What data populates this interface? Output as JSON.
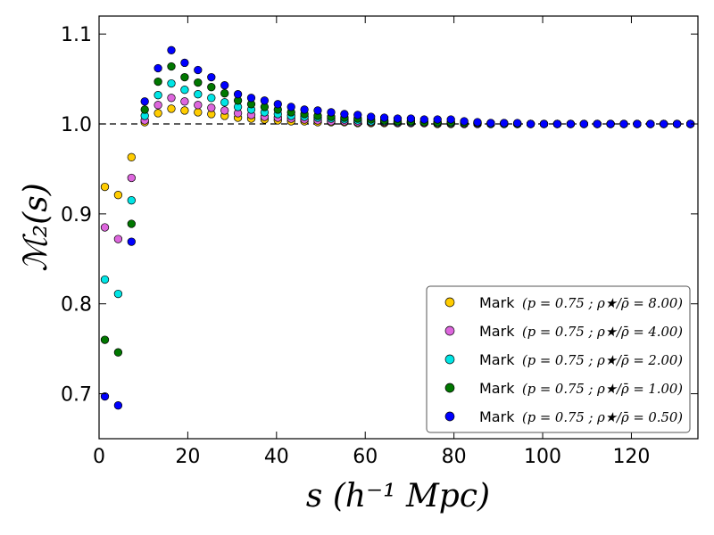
{
  "chart_data": {
    "type": "scatter",
    "title": "",
    "xlabel": "s (h⁻¹ Mpc)",
    "ylabel": "ℳ₂(s)",
    "xlim": [
      0,
      135
    ],
    "ylim": [
      0.65,
      1.12
    ],
    "xticks": [
      0,
      20,
      40,
      60,
      80,
      100,
      120
    ],
    "xtick_labels": [
      "0",
      "20",
      "40",
      "60",
      "80",
      "100",
      "120"
    ],
    "yticks": [
      0.7,
      0.8,
      0.9,
      1.0,
      1.1
    ],
    "ytick_labels": [
      "0.7",
      "0.8",
      "0.9",
      "1.0",
      "1.1"
    ],
    "reference_line": {
      "y": 1.0,
      "style": "dashed"
    },
    "grid": false,
    "legend_position": "lower-right",
    "x": [
      1.3,
      4.3,
      7.3,
      10.3,
      13.3,
      16.3,
      19.3,
      22.3,
      25.3,
      28.3,
      31.3,
      34.3,
      37.3,
      40.3,
      43.3,
      46.3,
      49.3,
      52.3,
      55.3,
      58.3,
      61.3,
      64.3,
      67.3,
      70.3,
      73.3,
      76.3,
      79.3,
      82.3,
      85.3,
      88.3,
      91.3,
      94.3,
      97.3,
      100.3,
      103.3,
      106.3,
      109.3,
      112.3,
      115.3,
      118.3,
      121.3,
      124.3,
      127.3,
      130.3,
      133.3
    ],
    "series": [
      {
        "name": "Mark",
        "label_math": "(p = 0.75 ; ρ★/ρ̄ = 8.00)",
        "color": "#ffcc00",
        "values": [
          0.93,
          0.921,
          0.963,
          1.002,
          1.012,
          1.017,
          1.015,
          1.013,
          1.011,
          1.009,
          1.007,
          1.006,
          1.005,
          1.004,
          1.003,
          1.003,
          1.002,
          1.002,
          1.002,
          1.001,
          1.001,
          1.001,
          1.001,
          1.001,
          1.001,
          1.0,
          1.0,
          1.0,
          1.0,
          1.0,
          1.0,
          1.0,
          1.0,
          1.0,
          1.0,
          1.0,
          1.0,
          1.0,
          1.0,
          1.0,
          1.0,
          1.0,
          1.0,
          1.0,
          1.0
        ]
      },
      {
        "name": "Mark",
        "label_math": "(p = 0.75 ; ρ★/ρ̄ = 4.00)",
        "color": "#dd66dd",
        "values": [
          0.885,
          0.872,
          0.94,
          1.004,
          1.021,
          1.029,
          1.025,
          1.021,
          1.018,
          1.015,
          1.012,
          1.01,
          1.008,
          1.007,
          1.006,
          1.005,
          1.004,
          1.003,
          1.003,
          1.002,
          1.002,
          1.002,
          1.001,
          1.001,
          1.001,
          1.001,
          1.001,
          1.0,
          1.0,
          1.0,
          1.0,
          1.0,
          1.0,
          1.0,
          1.0,
          1.0,
          1.0,
          1.0,
          1.0,
          1.0,
          1.0,
          1.0,
          1.0,
          1.0,
          1.0
        ]
      },
      {
        "name": "Mark",
        "label_math": "(p = 0.75 ; ρ★/ρ̄ = 2.00)",
        "color": "#00e5e5",
        "values": [
          0.827,
          0.811,
          0.915,
          1.009,
          1.032,
          1.045,
          1.038,
          1.033,
          1.029,
          1.024,
          1.019,
          1.016,
          1.013,
          1.011,
          1.009,
          1.008,
          1.007,
          1.006,
          1.005,
          1.004,
          1.003,
          1.003,
          1.002,
          1.002,
          1.002,
          1.001,
          1.001,
          1.001,
          1.001,
          1.0,
          1.0,
          1.0,
          1.0,
          1.0,
          1.0,
          1.0,
          1.0,
          1.0,
          1.0,
          1.0,
          1.0,
          1.0,
          1.0,
          1.0,
          1.0
        ]
      },
      {
        "name": "Mark",
        "label_math": "(p = 0.75 ; ρ★/ρ̄ = 1.00)",
        "color": "#007700",
        "values": [
          0.76,
          0.746,
          0.889,
          1.016,
          1.047,
          1.064,
          1.052,
          1.046,
          1.041,
          1.034,
          1.026,
          1.022,
          1.019,
          1.016,
          1.013,
          1.011,
          1.009,
          1.008,
          1.007,
          1.006,
          1.005,
          1.004,
          1.003,
          1.003,
          1.002,
          1.002,
          1.002,
          1.001,
          1.001,
          1.001,
          1.001,
          1.0,
          1.0,
          1.0,
          1.0,
          1.0,
          1.0,
          1.0,
          1.0,
          1.0,
          1.0,
          1.0,
          1.0,
          1.0,
          1.0
        ]
      },
      {
        "name": "Mark",
        "label_math": "(p = 0.75 ; ρ★/ρ̄ = 0.50)",
        "color": "#0000ff",
        "values": [
          0.697,
          0.687,
          0.869,
          1.025,
          1.062,
          1.082,
          1.068,
          1.06,
          1.052,
          1.043,
          1.033,
          1.029,
          1.026,
          1.022,
          1.019,
          1.016,
          1.015,
          1.013,
          1.011,
          1.01,
          1.008,
          1.007,
          1.006,
          1.006,
          1.005,
          1.005,
          1.005,
          1.003,
          1.002,
          1.001,
          1.001,
          1.001,
          1.0,
          1.0,
          1.0,
          1.0,
          1.0,
          1.0,
          1.0,
          1.0,
          1.0,
          1.0,
          1.0,
          1.0,
          1.0
        ]
      }
    ]
  }
}
